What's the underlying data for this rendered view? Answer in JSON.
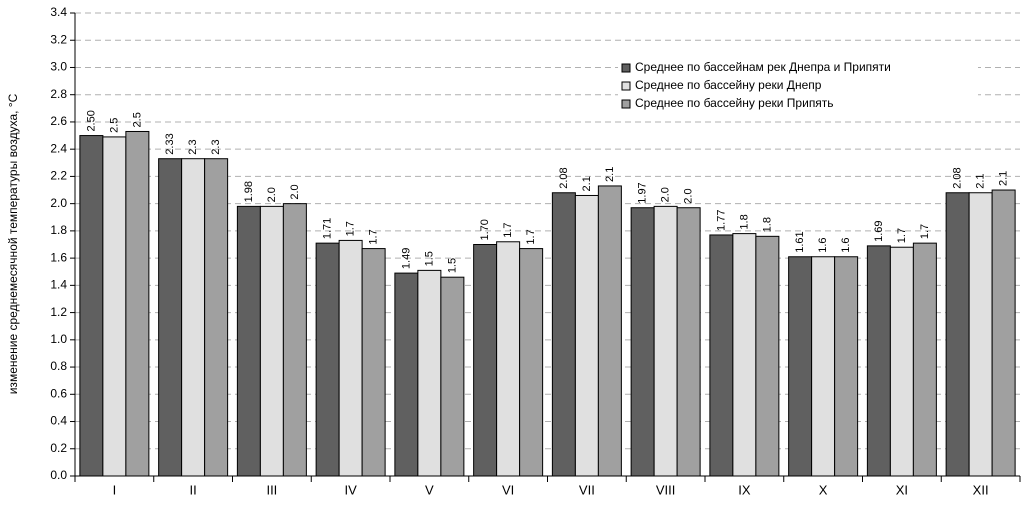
{
  "chart_data": {
    "type": "bar",
    "y_label": "изменение среднемесячной температуры воздуха, °C",
    "categories": [
      "I",
      "II",
      "III",
      "IV",
      "V",
      "VI",
      "VII",
      "VIII",
      "IX",
      "X",
      "XI",
      "XII"
    ],
    "series": [
      {
        "name": "Среднее по бассейнам рек Днепра и Припяти",
        "color": "#606060",
        "values": [
          2.5,
          2.33,
          1.98,
          1.71,
          1.49,
          1.7,
          2.08,
          1.97,
          1.77,
          1.61,
          1.69,
          2.08
        ],
        "value_labels": [
          "2.50",
          "2.33",
          "1.98",
          "1.71",
          "1.49",
          "1.70",
          "2.08",
          "1.97",
          "1.77",
          "1.61",
          "1.69",
          "2.08"
        ]
      },
      {
        "name": "Среднее по бассейну реки Днепр",
        "color": "#e0e0e0",
        "values": [
          2.49,
          2.33,
          1.98,
          1.73,
          1.51,
          1.72,
          2.06,
          1.98,
          1.78,
          1.61,
          1.68,
          2.08
        ],
        "value_labels": [
          "2.5",
          "2.3",
          "2.0",
          "1.7",
          "1.5",
          "1.7",
          "2.1",
          "2.0",
          "1.8",
          "1.6",
          "1.7",
          "2.1"
        ]
      },
      {
        "name": "Среднее по бассейну реки Припять",
        "color": "#a0a0a0",
        "values": [
          2.53,
          2.33,
          2.0,
          1.67,
          1.46,
          1.67,
          2.13,
          1.97,
          1.76,
          1.61,
          1.71,
          2.1
        ],
        "value_labels": [
          "2.5",
          "2.3",
          "2.0",
          "1.7",
          "1.5",
          "1.7",
          "2.1",
          "2.0",
          "1.8",
          "1.6",
          "1.7",
          "2.1"
        ]
      }
    ],
    "ylim": [
      0,
      3.4
    ],
    "yticks": [
      {
        "value": 0,
        "label": "0.0"
      },
      0.2,
      0.4,
      0.6,
      0.8,
      {
        "value": 1,
        "label": "1.0"
      },
      1.2,
      1.4,
      1.6,
      1.8,
      {
        "value": 2,
        "label": "2.0"
      },
      2.2,
      2.4,
      2.6,
      2.8,
      {
        "value": 3,
        "label": "3.0"
      },
      3.2,
      3.4
    ],
    "grid": true,
    "legend": "upper-right"
  }
}
